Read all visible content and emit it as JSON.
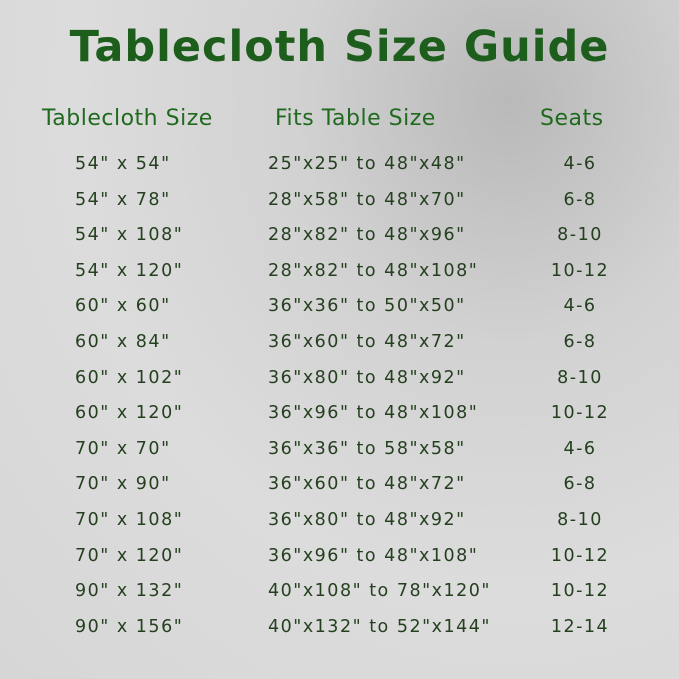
{
  "title": "Tablecloth Size Guide",
  "colors": {
    "title": "#1d5e1d",
    "header": "#1f6a1f",
    "text": "#24401f"
  },
  "headers": [
    "Tablecloth Size",
    "Fits Table Size",
    "Seats"
  ],
  "rows": [
    [
      "54\" x 54\"",
      "25\"x25\" to 48\"x48\"",
      "4-6"
    ],
    [
      "54\" x 78\"",
      "28\"x58\" to 48\"x70\"",
      "6-8"
    ],
    [
      "54\" x 108\"",
      "28\"x82\" to 48\"x96\"",
      "8-10"
    ],
    [
      "54\" x 120\"",
      "28\"x82\" to 48\"x108\"",
      "10-12"
    ],
    [
      "60\" x 60\"",
      "36\"x36\" to 50\"x50\"",
      "4-6"
    ],
    [
      "60\" x 84\"",
      "36\"x60\" to 48\"x72\"",
      "6-8"
    ],
    [
      "60\" x 102\"",
      "36\"x80\" to 48\"x92\"",
      "8-10"
    ],
    [
      "60\" x 120\"",
      "36\"x96\" to 48\"x108\"",
      "10-12"
    ],
    [
      "70\" x 70\"",
      "36\"x36\" to 58\"x58\"",
      "4-6"
    ],
    [
      "70\" x 90\"",
      "36\"x60\" to 48\"x72\"",
      "6-8"
    ],
    [
      "70\" x 108\"",
      "36\"x80\" to 48\"x92\"",
      "8-10"
    ],
    [
      "70\" x 120\"",
      "36\"x96\" to 48\"x108\"",
      "10-12"
    ],
    [
      "90\" x 132\"",
      "40\"x108\" to 78\"x120\"",
      "10-12"
    ],
    [
      "90\" x 156\"",
      "40\"x132\" to 52\"x144\"",
      "12-14"
    ]
  ]
}
